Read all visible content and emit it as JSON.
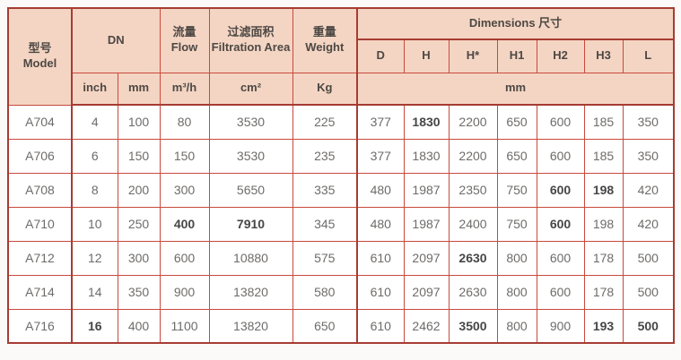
{
  "colors": {
    "page_bg": "#fbfaf9",
    "header_bg": "#f4d5c3",
    "grid_line": "#c9493d",
    "outer_border": "#a63c33",
    "header_text": "#4d4844",
    "cell_text": "#6e6c6a",
    "bold_cell_text": "#464646",
    "row_bg": "#ffffff"
  },
  "table": {
    "header": {
      "model_zh": "型号",
      "model_en": "Model",
      "dn": "DN",
      "flow_zh": "流量",
      "flow_en": "Flow",
      "filtration_zh": "过滤面积",
      "filtration_en": "Filtration Area",
      "weight_zh": "重量",
      "weight_en": "Weight",
      "dimensions": "Dimensions 尺寸",
      "dim_cols": [
        "D",
        "H",
        "H*",
        "H1",
        "H2",
        "H3",
        "L"
      ],
      "units": {
        "inch": "inch",
        "mm": "mm",
        "flow": "m³/h",
        "filtration": "cm²",
        "weight": "Kg",
        "dimensions_mm": "mm"
      }
    },
    "column_keys": [
      "model",
      "inch",
      "mm",
      "flow",
      "area",
      "weight",
      "D",
      "H",
      "Hstar",
      "H1",
      "H2",
      "H3",
      "L"
    ],
    "rows": [
      {
        "values": {
          "model": "A704",
          "inch": "4",
          "mm": "100",
          "flow": "80",
          "area": "3530",
          "weight": "225",
          "D": "377",
          "H": "1830",
          "Hstar": "2200",
          "H1": "650",
          "H2": "600",
          "H3": "185",
          "L": "350"
        },
        "bold": [
          "H"
        ]
      },
      {
        "values": {
          "model": "A706",
          "inch": "6",
          "mm": "150",
          "flow": "150",
          "area": "3530",
          "weight": "235",
          "D": "377",
          "H": "1830",
          "Hstar": "2200",
          "H1": "650",
          "H2": "600",
          "H3": "185",
          "L": "350"
        },
        "bold": []
      },
      {
        "values": {
          "model": "A708",
          "inch": "8",
          "mm": "200",
          "flow": "300",
          "area": "5650",
          "weight": "335",
          "D": "480",
          "H": "1987",
          "Hstar": "2350",
          "H1": "750",
          "H2": "600",
          "H3": "198",
          "L": "420"
        },
        "bold": [
          "H2",
          "H3"
        ]
      },
      {
        "values": {
          "model": "A710",
          "inch": "10",
          "mm": "250",
          "flow": "400",
          "area": "7910",
          "weight": "345",
          "D": "480",
          "H": "1987",
          "Hstar": "2400",
          "H1": "750",
          "H2": "600",
          "H3": "198",
          "L": "420"
        },
        "bold": [
          "flow",
          "area",
          "H2"
        ]
      },
      {
        "values": {
          "model": "A712",
          "inch": "12",
          "mm": "300",
          "flow": "600",
          "area": "10880",
          "weight": "575",
          "D": "610",
          "H": "2097",
          "Hstar": "2630",
          "H1": "800",
          "H2": "600",
          "H3": "178",
          "L": "500"
        },
        "bold": [
          "Hstar"
        ]
      },
      {
        "values": {
          "model": "A714",
          "inch": "14",
          "mm": "350",
          "flow": "900",
          "area": "13820",
          "weight": "580",
          "D": "610",
          "H": "2097",
          "Hstar": "2630",
          "H1": "800",
          "H2": "600",
          "H3": "178",
          "L": "500"
        },
        "bold": []
      },
      {
        "values": {
          "model": "A716",
          "inch": "16",
          "mm": "400",
          "flow": "1100",
          "area": "13820",
          "weight": "650",
          "D": "610",
          "H": "2462",
          "Hstar": "3500",
          "H1": "800",
          "H2": "900",
          "H3": "193",
          "L": "500"
        },
        "bold": [
          "inch",
          "Hstar",
          "H3",
          "L"
        ]
      }
    ]
  }
}
